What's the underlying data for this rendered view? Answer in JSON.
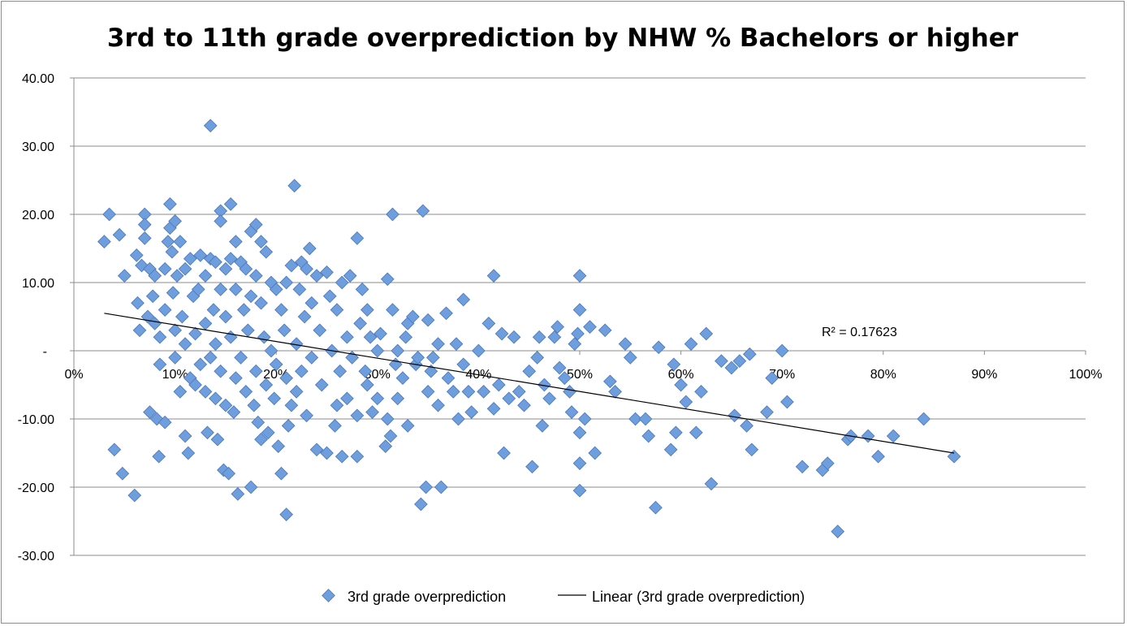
{
  "chart_data": {
    "type": "scatter",
    "title": "3rd to 11th grade overprediction by NHW % Bachelors or higher",
    "xlabel": "",
    "ylabel": "",
    "xlim": [
      0,
      100
    ],
    "ylim": [
      -30,
      40
    ],
    "x_ticks": [
      "0%",
      "10%",
      "20%",
      "30%",
      "40%",
      "50%",
      "60%",
      "70%",
      "80%",
      "90%",
      "100%"
    ],
    "y_ticks": [
      "-30.00",
      "-20.00",
      "-10.00",
      "-",
      "10.00",
      "20.00",
      "30.00",
      "40.00"
    ],
    "grid": "horizontal",
    "legend_position": "bottom",
    "colors": {
      "marker": "#6f9ede",
      "marker_edge": "#4a77b8",
      "trendline": "#000000",
      "grid": "#8c8c8c"
    },
    "series": [
      {
        "name": "3rd grade overprediction",
        "marker": "diamond",
        "points": [
          [
            3,
            16
          ],
          [
            3.5,
            20
          ],
          [
            4,
            -14.5
          ],
          [
            4.5,
            17
          ],
          [
            4.8,
            -18
          ],
          [
            5,
            11
          ],
          [
            6,
            -21.2
          ],
          [
            6.2,
            14
          ],
          [
            6.3,
            7
          ],
          [
            6.5,
            3
          ],
          [
            6.7,
            12.5
          ],
          [
            7,
            20
          ],
          [
            7,
            18.5
          ],
          [
            7,
            16.5
          ],
          [
            7.3,
            5
          ],
          [
            7.5,
            12
          ],
          [
            7.5,
            -9
          ],
          [
            7.8,
            8
          ],
          [
            8,
            11
          ],
          [
            8,
            4
          ],
          [
            8.2,
            -10
          ],
          [
            8.4,
            -15.5
          ],
          [
            8.5,
            2
          ],
          [
            8.5,
            -2
          ],
          [
            9,
            12
          ],
          [
            9,
            6
          ],
          [
            9,
            -10.5
          ],
          [
            9.3,
            16
          ],
          [
            9.5,
            21.5
          ],
          [
            9.5,
            18
          ],
          [
            9.7,
            14.5
          ],
          [
            9.8,
            8.5
          ],
          [
            10,
            19
          ],
          [
            10,
            3
          ],
          [
            10,
            -1
          ],
          [
            10.2,
            11
          ],
          [
            10.5,
            -6
          ],
          [
            10.5,
            16
          ],
          [
            10.7,
            5
          ],
          [
            11,
            12
          ],
          [
            11,
            -12.5
          ],
          [
            11,
            1
          ],
          [
            11.3,
            -15
          ],
          [
            11.5,
            13.5
          ],
          [
            11.5,
            -4
          ],
          [
            11.8,
            8
          ],
          [
            12,
            2.5
          ],
          [
            12,
            -5
          ],
          [
            12.3,
            9
          ],
          [
            12.5,
            14
          ],
          [
            12.5,
            -2
          ],
          [
            13,
            11
          ],
          [
            13,
            4
          ],
          [
            13,
            -6
          ],
          [
            13.2,
            -12
          ],
          [
            13.5,
            33
          ],
          [
            13.5,
            13.5
          ],
          [
            13.5,
            -1
          ],
          [
            13.8,
            6
          ],
          [
            14,
            13
          ],
          [
            14,
            1
          ],
          [
            14,
            -7
          ],
          [
            14.2,
            -13
          ],
          [
            14.5,
            20.5
          ],
          [
            14.5,
            19
          ],
          [
            14.5,
            9
          ],
          [
            14.5,
            -3
          ],
          [
            14.8,
            -17.5
          ],
          [
            15,
            12
          ],
          [
            15,
            5
          ],
          [
            15,
            -8
          ],
          [
            15.3,
            -18
          ],
          [
            15.5,
            13.5
          ],
          [
            15.5,
            21.5
          ],
          [
            15.5,
            2
          ],
          [
            15.8,
            -9
          ],
          [
            16,
            16
          ],
          [
            16,
            9
          ],
          [
            16,
            -4
          ],
          [
            16.2,
            -21
          ],
          [
            16.5,
            13
          ],
          [
            16.5,
            -1
          ],
          [
            16.8,
            6
          ],
          [
            17,
            12
          ],
          [
            17,
            -6
          ],
          [
            17.2,
            3
          ],
          [
            17.5,
            17.5
          ],
          [
            17.5,
            8
          ],
          [
            17.5,
            -20
          ],
          [
            17.8,
            -8
          ],
          [
            18,
            18.5
          ],
          [
            18,
            11
          ],
          [
            18,
            -3
          ],
          [
            18.2,
            -10.5
          ],
          [
            18.5,
            16
          ],
          [
            18.5,
            7
          ],
          [
            18.5,
            -13
          ],
          [
            18.8,
            2
          ],
          [
            19,
            14.5
          ],
          [
            19,
            -5
          ],
          [
            19.2,
            -12
          ],
          [
            19.5,
            10
          ],
          [
            19.5,
            0
          ],
          [
            19.8,
            -7
          ],
          [
            20,
            9
          ],
          [
            20,
            -2
          ],
          [
            20.2,
            -14
          ],
          [
            20.5,
            6
          ],
          [
            20.5,
            -18
          ],
          [
            20.8,
            3
          ],
          [
            21,
            10
          ],
          [
            21,
            -4
          ],
          [
            21,
            -24
          ],
          [
            21.2,
            -11
          ],
          [
            21.5,
            12.5
          ],
          [
            21.5,
            -8
          ],
          [
            21.8,
            24.2
          ],
          [
            22,
            1
          ],
          [
            22,
            -6
          ],
          [
            22.3,
            9
          ],
          [
            22.5,
            13
          ],
          [
            22.5,
            -3
          ],
          [
            22.8,
            5
          ],
          [
            23,
            12
          ],
          [
            23,
            -9.5
          ],
          [
            23.3,
            15
          ],
          [
            23.5,
            7
          ],
          [
            23.5,
            -1
          ],
          [
            24,
            11
          ],
          [
            24,
            -14.5
          ],
          [
            24.3,
            3
          ],
          [
            24.5,
            -5
          ],
          [
            25,
            11.5
          ],
          [
            25,
            -15
          ],
          [
            25.3,
            8
          ],
          [
            25.5,
            0
          ],
          [
            25.8,
            -11
          ],
          [
            26,
            6
          ],
          [
            26,
            -8
          ],
          [
            26.3,
            -3
          ],
          [
            26.5,
            10
          ],
          [
            26.5,
            -15.5
          ],
          [
            27,
            2
          ],
          [
            27,
            -7
          ],
          [
            27.3,
            11
          ],
          [
            27.5,
            -1
          ],
          [
            28,
            16.5
          ],
          [
            28,
            -9.5
          ],
          [
            28,
            -15.5
          ],
          [
            28.3,
            4
          ],
          [
            28.5,
            9
          ],
          [
            28.8,
            -3
          ],
          [
            29,
            6
          ],
          [
            29,
            -5
          ],
          [
            29.3,
            2
          ],
          [
            29.5,
            -9
          ],
          [
            30,
            0
          ],
          [
            30,
            -7
          ],
          [
            30.3,
            2.5
          ],
          [
            30.8,
            -14
          ],
          [
            31,
            10.5
          ],
          [
            31,
            -10
          ],
          [
            31.3,
            -12.5
          ],
          [
            31.5,
            20
          ],
          [
            31.5,
            6
          ],
          [
            31.8,
            -2
          ],
          [
            32,
            0
          ],
          [
            32,
            -7
          ],
          [
            32.5,
            -4
          ],
          [
            32.8,
            2
          ],
          [
            33,
            -11
          ],
          [
            33,
            4
          ],
          [
            33.5,
            5
          ],
          [
            33.8,
            -2
          ],
          [
            34,
            -1
          ],
          [
            34.3,
            -22.5
          ],
          [
            34.5,
            20.5
          ],
          [
            34.8,
            -20
          ],
          [
            35,
            4.5
          ],
          [
            35,
            -6
          ],
          [
            35.3,
            -3
          ],
          [
            35.5,
            -1
          ],
          [
            36,
            1
          ],
          [
            36,
            -8
          ],
          [
            36.3,
            -20
          ],
          [
            36.8,
            5.5
          ],
          [
            37,
            -4
          ],
          [
            37.5,
            -6
          ],
          [
            37.8,
            1
          ],
          [
            38,
            -10
          ],
          [
            38.5,
            7.5
          ],
          [
            38.5,
            -2
          ],
          [
            39,
            -6
          ],
          [
            39.3,
            -9
          ],
          [
            40,
            0
          ],
          [
            40.5,
            -6
          ],
          [
            41,
            4
          ],
          [
            41.5,
            11
          ],
          [
            41.5,
            -8.5
          ],
          [
            42,
            -5
          ],
          [
            42.3,
            2.5
          ],
          [
            42.5,
            -15
          ],
          [
            43,
            -7
          ],
          [
            43.5,
            2
          ],
          [
            44,
            -6
          ],
          [
            44.5,
            -8
          ],
          [
            45,
            -3
          ],
          [
            45.3,
            -17
          ],
          [
            45.8,
            -1
          ],
          [
            46,
            2
          ],
          [
            46.3,
            -11
          ],
          [
            46.5,
            -5
          ],
          [
            47,
            -7
          ],
          [
            47.5,
            2
          ],
          [
            47.8,
            3.5
          ],
          [
            48,
            -2.5
          ],
          [
            48.5,
            -4
          ],
          [
            49,
            -6
          ],
          [
            49.2,
            -9
          ],
          [
            49.5,
            1
          ],
          [
            49.8,
            2.5
          ],
          [
            50,
            11
          ],
          [
            50,
            6
          ],
          [
            50,
            -12
          ],
          [
            50,
            -16.5
          ],
          [
            50,
            -20.5
          ],
          [
            50.5,
            -10
          ],
          [
            51,
            3.5
          ],
          [
            51.5,
            -15
          ],
          [
            52.5,
            3
          ],
          [
            53,
            -4.5
          ],
          [
            53.5,
            -6
          ],
          [
            54.5,
            1
          ],
          [
            55,
            -1
          ],
          [
            55.5,
            -10
          ],
          [
            56.5,
            -10
          ],
          [
            56.8,
            -12.5
          ],
          [
            57.5,
            -23
          ],
          [
            57.8,
            0.5
          ],
          [
            59,
            -14.5
          ],
          [
            59.3,
            -2
          ],
          [
            59.5,
            -12
          ],
          [
            60,
            -5
          ],
          [
            60.5,
            -7.5
          ],
          [
            61,
            1
          ],
          [
            61.5,
            -12
          ],
          [
            62,
            -6
          ],
          [
            62.5,
            2.5
          ],
          [
            63,
            -19.5
          ],
          [
            64,
            -1.5
          ],
          [
            65,
            -2.5
          ],
          [
            65.3,
            -9.5
          ],
          [
            65.8,
            -1.5
          ],
          [
            66.5,
            -11
          ],
          [
            66.8,
            -0.5
          ],
          [
            67,
            -14.5
          ],
          [
            68.5,
            -9
          ],
          [
            69,
            -4
          ],
          [
            70,
            0
          ],
          [
            70.5,
            -7.5
          ],
          [
            72,
            -17
          ],
          [
            74,
            -17.5
          ],
          [
            74.5,
            -16.5
          ],
          [
            75.5,
            -26.5
          ],
          [
            76.5,
            -13
          ],
          [
            76.8,
            -12.5
          ],
          [
            78.5,
            -12.5
          ],
          [
            79.5,
            -15.5
          ],
          [
            81,
            -12.5
          ],
          [
            84,
            -10
          ],
          [
            87,
            -15.5
          ]
        ]
      }
    ],
    "trendline": {
      "name": "Linear (3rd grade overprediction)",
      "type": "linear",
      "x": [
        3,
        87
      ],
      "y": [
        5.5,
        -15
      ],
      "r_squared_label": "R² = 0.17623"
    }
  }
}
